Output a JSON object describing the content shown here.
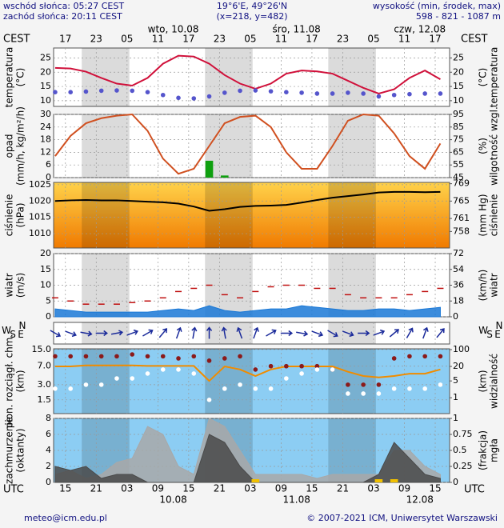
{
  "chart_data": {
    "type": "meteogram",
    "header": {
      "left": [
        "wschód słońca: 05:27 CEST",
        "zachód słońca: 20:11 CEST"
      ],
      "center": [
        "19°6'E, 49°26'N",
        "(x=218,  y=482)"
      ],
      "right": [
        "wysokość (min, środek, max)",
        "598 - 821 - 1087 m"
      ]
    },
    "footer": {
      "left": "meteo@icm.edu.pl",
      "right": "© 2007-2021 ICM, Uniwersytet Warszawski"
    },
    "top_axis_label": "CEST",
    "bottom_axis_label": "UTC",
    "xlim": [
      12.7,
      89.8
    ],
    "x": [
      13,
      16,
      19,
      22,
      25,
      28,
      31,
      34,
      37,
      40,
      43,
      46,
      49,
      52,
      55,
      58,
      61,
      64,
      67,
      70,
      73,
      76,
      79,
      82,
      85,
      88
    ],
    "x2ticks": [
      {
        "value": 15,
        "label": "17"
      },
      {
        "value": 21,
        "label": "23"
      },
      {
        "value": 27,
        "label": "05"
      },
      {
        "value": 33,
        "label": "11"
      },
      {
        "value": 39,
        "label": "17"
      },
      {
        "value": 45,
        "label": "23"
      },
      {
        "value": 51,
        "label": "05"
      },
      {
        "value": 57,
        "label": "11"
      },
      {
        "value": 63,
        "label": "17"
      },
      {
        "value": 69,
        "label": "23"
      },
      {
        "value": 75,
        "label": "05"
      },
      {
        "value": 81,
        "label": "11"
      },
      {
        "value": 87,
        "label": "17"
      }
    ],
    "xticks": [
      15,
      21,
      {
        "value": 27,
        "label": "03"
      },
      {
        "value": 33,
        "label": "09"
      },
      {
        "value": 39,
        "label": "15"
      },
      {
        "value": 45,
        "label": "21"
      },
      {
        "value": 51,
        "label": "03"
      },
      {
        "value": 57,
        "label": "09"
      },
      {
        "value": 63,
        "label": "15"
      },
      {
        "value": 69,
        "label": "21"
      },
      {
        "value": 75,
        "label": "03"
      },
      {
        "value": 81,
        "label": "09"
      },
      {
        "value": 87,
        "label": "15"
      }
    ],
    "top_days": [
      {
        "value": 36,
        "label": "wto, 10.08"
      },
      {
        "value": 60,
        "label": "śro, 11.08"
      },
      {
        "value": 84,
        "label": "czw, 12.08"
      }
    ],
    "bottom_days": [
      {
        "value": 36,
        "label": "10.08"
      },
      {
        "value": 60,
        "label": "11.08"
      },
      {
        "value": 84,
        "label": "12.08"
      }
    ],
    "nights": [
      [
        18.18,
        27.45
      ],
      [
        42.18,
        51.45
      ],
      [
        66.18,
        75.45
      ]
    ],
    "panels": [
      {
        "type": "line",
        "ylabel": [
          "temperatura",
          "(°C)"
        ],
        "y2label": [
          "(°C)",
          "temperatura"
        ],
        "ylim": [
          8,
          28.5
        ],
        "yticks": [
          10,
          15,
          20,
          25
        ],
        "y2lim": [
          8,
          28.5
        ],
        "y2ticks": [
          10,
          15,
          20,
          25
        ],
        "background": "#ffffff",
        "series": [
          {
            "style": "line",
            "color": "#d0103a",
            "values": [
              21.5,
              21.3,
              20.2,
              18,
              16,
              15.3,
              18,
              23,
              25.8,
              25.5,
              23,
              19,
              16,
              14.2,
              16,
              19.5,
              20.6,
              20.3,
              19.5,
              17,
              14.5,
              12.5,
              14,
              18,
              20.6,
              17.5
            ]
          },
          {
            "style": "dots",
            "color": "#5555cc",
            "values": [
              13,
              13,
              13.2,
              13.5,
              13.6,
              13.5,
              13,
              12,
              11,
              10.8,
              11.5,
              12.8,
              13.5,
              13.6,
              13.3,
              13,
              12.8,
              12.5,
              12.5,
              12.8,
              12.5,
              11.5,
              12,
              12.3,
              12.5,
              12.5
            ]
          }
        ]
      },
      {
        "type": "bar",
        "ylabel": [
          "opad",
          "(mm/h, kg/m²/h)"
        ],
        "y2label": [
          "(%)",
          "wilgotność wzgl."
        ],
        "ylim": [
          0,
          30
        ],
        "yticks": [
          0,
          6,
          12,
          18,
          24,
          30
        ],
        "y2lim": [
          45,
          95
        ],
        "y2ticks": [
          45,
          55,
          65,
          75,
          85,
          95
        ],
        "background": "#ffffff",
        "series": [
          {
            "style": "bar",
            "color": "#10a010",
            "values": [
              0,
              0,
              0,
              0,
              0,
              0,
              0,
              0,
              0,
              0,
              8,
              1,
              0,
              0,
              0,
              0,
              0,
              0,
              0,
              0,
              0,
              0,
              0,
              0,
              0,
              0
            ]
          },
          {
            "style": "line",
            "axis": "y2",
            "color": "#d05020",
            "values": [
              62,
              78,
              88,
              92,
              94,
              95,
              82,
              60,
              48,
              52,
              70,
              88,
              93,
              94,
              85,
              65,
              52,
              52,
              70,
              90,
              95,
              94,
              80,
              62,
              52,
              72
            ]
          }
        ]
      },
      {
        "type": "line",
        "ylabel": [
          "ciśnienie",
          "(hPa)"
        ],
        "y2label": [
          "(mm Hg)",
          "ciśnienie"
        ],
        "ylim": [
          1005.6,
          1025.7
        ],
        "yticks": [
          1010,
          1015,
          1020,
          1025
        ],
        "y2lim": [
          754.2,
          769.3
        ],
        "y2ticks": [
          758,
          761,
          765,
          769
        ],
        "background": "#f9a21e",
        "series": [
          {
            "style": "line",
            "color": "#000000",
            "values": [
              1020,
              1020.2,
              1020.3,
              1020.2,
              1020.2,
              1020,
              1019.8,
              1019.6,
              1019.2,
              1018.3,
              1017,
              1017.5,
              1018.2,
              1018.5,
              1018.6,
              1018.8,
              1019.5,
              1020.3,
              1021,
              1021.5,
              1022,
              1022.6,
              1022.8,
              1022.8,
              1022.7,
              1022.8
            ]
          }
        ]
      },
      {
        "type": "area",
        "ylabel": [
          "wiatr",
          "(m/s)"
        ],
        "y2label": [
          "(km/h)",
          "wiatr"
        ],
        "ylim": [
          0,
          20
        ],
        "yticks": [
          0,
          5,
          10,
          15,
          20
        ],
        "y2lim": [
          0,
          72
        ],
        "y2ticks": [
          0,
          18,
          36,
          54,
          72
        ],
        "background": "#ffffff",
        "series": [
          {
            "style": "area",
            "color": "#1a78d6",
            "values": [
              2.5,
              2,
              1.5,
              1.5,
              1.5,
              1.5,
              1.5,
              2,
              2.5,
              2,
              3.5,
              2,
              1.5,
              2,
              2.5,
              2.5,
              3.5,
              3,
              2.5,
              2,
              2,
              2.5,
              2.5,
              2,
              2.5,
              3
            ]
          },
          {
            "style": "dashes",
            "color": "#c01010",
            "values": [
              6,
              5,
              4,
              4,
              4,
              4.5,
              5,
              6,
              8,
              9,
              10,
              7,
              6,
              8,
              9.5,
              10,
              10,
              9,
              9,
              7,
              6,
              6,
              6,
              7,
              8,
              9
            ]
          }
        ]
      },
      {
        "type": "arrows",
        "compass": [
          "N",
          "E",
          "S",
          "W"
        ],
        "background": "#ffffff",
        "series": [
          {
            "style": "arrows",
            "color": "#1a2a9a",
            "values": [
              300,
              290,
              280,
              270,
              260,
              250,
              240,
              220,
              200,
              190,
              180,
              170,
              160,
              200,
              240,
              270,
              280,
              290,
              300,
              290,
              270,
              250,
              230,
              210,
              200,
              220
            ]
          }
        ]
      },
      {
        "type": "line",
        "log": true,
        "ylabel": [
          "pion. rozciągł. chm.",
          "(km)"
        ],
        "y2label": [
          "(km)",
          "widzialność"
        ],
        "ylim": [
          0.8,
          15.5
        ],
        "yticks": [
          {
            "value": 1.5,
            "label": "1.5"
          },
          {
            "value": 3,
            "label": "3.0"
          },
          {
            "value": 7,
            "label": "7.0"
          },
          {
            "value": 15,
            "label": "15.0"
          }
        ],
        "y2lim": [
          0.22,
          108
        ],
        "y2ticks": [
          1,
          5,
          20,
          100
        ],
        "background": "#8ccdf3",
        "series": [
          {
            "style": "line",
            "axis": "y2",
            "color": "#f08c00",
            "values": [
              20,
              20,
              22,
              22,
              22,
              22,
              21,
              21,
              21,
              21,
              5,
              20,
              15,
              8,
              15,
              20,
              20,
              20,
              20,
              12,
              8,
              7,
              8,
              10,
              10,
              15
            ]
          },
          {
            "style": "dots",
            "color": "#8b1a1a",
            "values": [
              11,
              11,
              11,
              11,
              11,
              12,
              11,
              11,
              10,
              11,
              9,
              10,
              11,
              6,
              7,
              7,
              7,
              7,
              6,
              3,
              3,
              3,
              10,
              11,
              11,
              11
            ]
          },
          {
            "style": "dots",
            "color": "#ffffff",
            "values": [
              2.5,
              2.5,
              3,
              3,
              4,
              4,
              5,
              6,
              6,
              5,
              1.5,
              2.5,
              3,
              2.5,
              2.5,
              4,
              5,
              6,
              6,
              2,
              2,
              2,
              2.5,
              2.5,
              2.5,
              3
            ]
          }
        ]
      },
      {
        "type": "area",
        "ylabel": [
          "zachmurzenie",
          "(oktanty)"
        ],
        "y2label": [
          "(frakcja)",
          "mgła"
        ],
        "ylim": [
          0,
          8
        ],
        "yticks": [
          0,
          2,
          4,
          6,
          8
        ],
        "y2lim": [
          0,
          1
        ],
        "y2ticks": [
          0,
          0.25,
          0.5,
          0.75,
          1
        ],
        "background": "#8ccdf3",
        "series": [
          {
            "style": "area",
            "color": "#a8a8a8",
            "values": [
              1,
              1.5,
              0.5,
              1,
              2.5,
              3,
              7,
              6,
              2,
              1,
              8,
              7,
              4,
              1,
              1,
              1,
              1,
              0.5,
              1,
              1,
              1,
              1,
              4,
              4,
              2,
              1
            ]
          },
          {
            "style": "area",
            "color": "#4a4a4a",
            "values": [
              2,
              1.5,
              2,
              0.5,
              1,
              1,
              0,
              0,
              0,
              0,
              6,
              5,
              2,
              0,
              0,
              0,
              0,
              0,
              0,
              0,
              0,
              1,
              5,
              3,
              1,
              0.5
            ]
          },
          {
            "style": "bar",
            "axis": "y2",
            "color": "#f0c000",
            "values": [
              0,
              0,
              0,
              0,
              0,
              0,
              0,
              0,
              0,
              0,
              0,
              0,
              0,
              0.05,
              0,
              0,
              0,
              0,
              0,
              0,
              0,
              0.05,
              0.05,
              0,
              0,
              0
            ]
          }
        ]
      }
    ]
  }
}
